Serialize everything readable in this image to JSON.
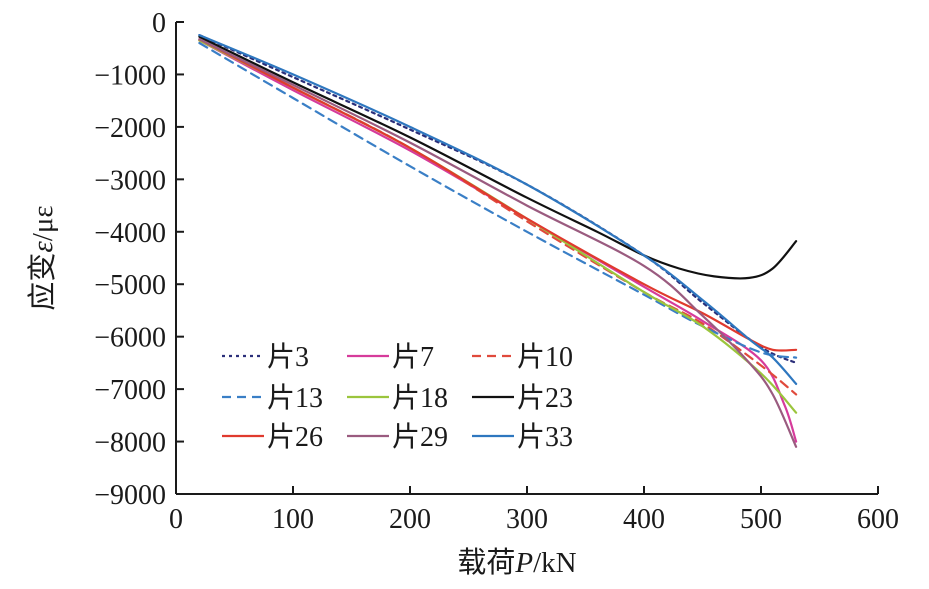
{
  "chart_data": {
    "type": "line",
    "xlabel_prefix": "载荷",
    "xlabel_var": "P",
    "xlabel_unit": "/kN",
    "ylabel_prefix": "应变",
    "ylabel_var": "ε",
    "ylabel_unit": "/με",
    "xlim": [
      0,
      600
    ],
    "ylim": [
      -9000,
      0
    ],
    "xticks": [
      0,
      100,
      200,
      300,
      400,
      500,
      600
    ],
    "yticks": [
      0,
      -1000,
      -2000,
      -3000,
      -4000,
      -5000,
      -6000,
      -7000,
      -8000,
      -9000
    ],
    "xtick_labels": [
      "0",
      "100",
      "200",
      "300",
      "400",
      "500",
      "600"
    ],
    "ytick_labels": [
      "0",
      "−1000",
      "−2000",
      "−3000",
      "−4000",
      "−5000",
      "−6000",
      "−7000",
      "−8000",
      "−9000"
    ],
    "grid": false,
    "legend_position": "bottom-left",
    "series": [
      {
        "name": "片3",
        "color": "#2b2f7a",
        "dash": "dotted",
        "points": [
          [
            20,
            -250
          ],
          [
            100,
            -1050
          ],
          [
            200,
            -2050
          ],
          [
            300,
            -3100
          ],
          [
            400,
            -4450
          ],
          [
            450,
            -5350
          ],
          [
            500,
            -6200
          ],
          [
            530,
            -6500
          ]
        ]
      },
      {
        "name": "片7",
        "color": "#d63b9b",
        "dash": "solid",
        "points": [
          [
            20,
            -350
          ],
          [
            100,
            -1300
          ],
          [
            200,
            -2450
          ],
          [
            300,
            -3750
          ],
          [
            400,
            -5050
          ],
          [
            450,
            -5700
          ],
          [
            500,
            -6450
          ],
          [
            520,
            -7300
          ],
          [
            530,
            -8000
          ]
        ]
      },
      {
        "name": "片10",
        "color": "#e04a3c",
        "dash": "dashed",
        "points": [
          [
            20,
            -350
          ],
          [
            100,
            -1250
          ],
          [
            200,
            -2400
          ],
          [
            300,
            -3800
          ],
          [
            400,
            -5150
          ],
          [
            450,
            -5750
          ],
          [
            500,
            -6550
          ],
          [
            530,
            -7100
          ]
        ]
      },
      {
        "name": "片13",
        "color": "#3a7fc6",
        "dash": "dashed",
        "points": [
          [
            20,
            -400
          ],
          [
            100,
            -1450
          ],
          [
            200,
            -2750
          ],
          [
            300,
            -4000
          ],
          [
            400,
            -5200
          ],
          [
            450,
            -5800
          ],
          [
            500,
            -6300
          ],
          [
            530,
            -6400
          ]
        ]
      },
      {
        "name": "片18",
        "color": "#9bc53d",
        "dash": "solid",
        "points": [
          [
            20,
            -350
          ],
          [
            100,
            -1250
          ],
          [
            200,
            -2400
          ],
          [
            300,
            -3750
          ],
          [
            400,
            -5150
          ],
          [
            450,
            -5800
          ],
          [
            500,
            -6700
          ],
          [
            530,
            -7450
          ]
        ]
      },
      {
        "name": "片23",
        "color": "#111111",
        "dash": "solid",
        "points": [
          [
            20,
            -280
          ],
          [
            100,
            -1150
          ],
          [
            200,
            -2200
          ],
          [
            300,
            -3350
          ],
          [
            360,
            -4000
          ],
          [
            400,
            -4450
          ],
          [
            430,
            -4700
          ],
          [
            460,
            -4850
          ],
          [
            490,
            -4880
          ],
          [
            510,
            -4700
          ],
          [
            530,
            -4180
          ]
        ]
      },
      {
        "name": "片26",
        "color": "#e03a2e",
        "dash": "solid",
        "points": [
          [
            20,
            -330
          ],
          [
            100,
            -1250
          ],
          [
            200,
            -2400
          ],
          [
            300,
            -3750
          ],
          [
            400,
            -5000
          ],
          [
            450,
            -5550
          ],
          [
            490,
            -6050
          ],
          [
            510,
            -6250
          ],
          [
            530,
            -6250
          ]
        ]
      },
      {
        "name": "片29",
        "color": "#9a5b7f",
        "dash": "solid",
        "points": [
          [
            20,
            -330
          ],
          [
            100,
            -1200
          ],
          [
            200,
            -2300
          ],
          [
            300,
            -3500
          ],
          [
            400,
            -4650
          ],
          [
            450,
            -5600
          ],
          [
            490,
            -6500
          ],
          [
            510,
            -7100
          ],
          [
            530,
            -8100
          ]
        ]
      },
      {
        "name": "片33",
        "color": "#2e77bf",
        "dash": "solid",
        "points": [
          [
            20,
            -250
          ],
          [
            100,
            -1000
          ],
          [
            200,
            -2000
          ],
          [
            300,
            -3100
          ],
          [
            400,
            -4450
          ],
          [
            450,
            -5300
          ],
          [
            490,
            -6050
          ],
          [
            510,
            -6400
          ],
          [
            530,
            -6900
          ]
        ]
      }
    ]
  }
}
